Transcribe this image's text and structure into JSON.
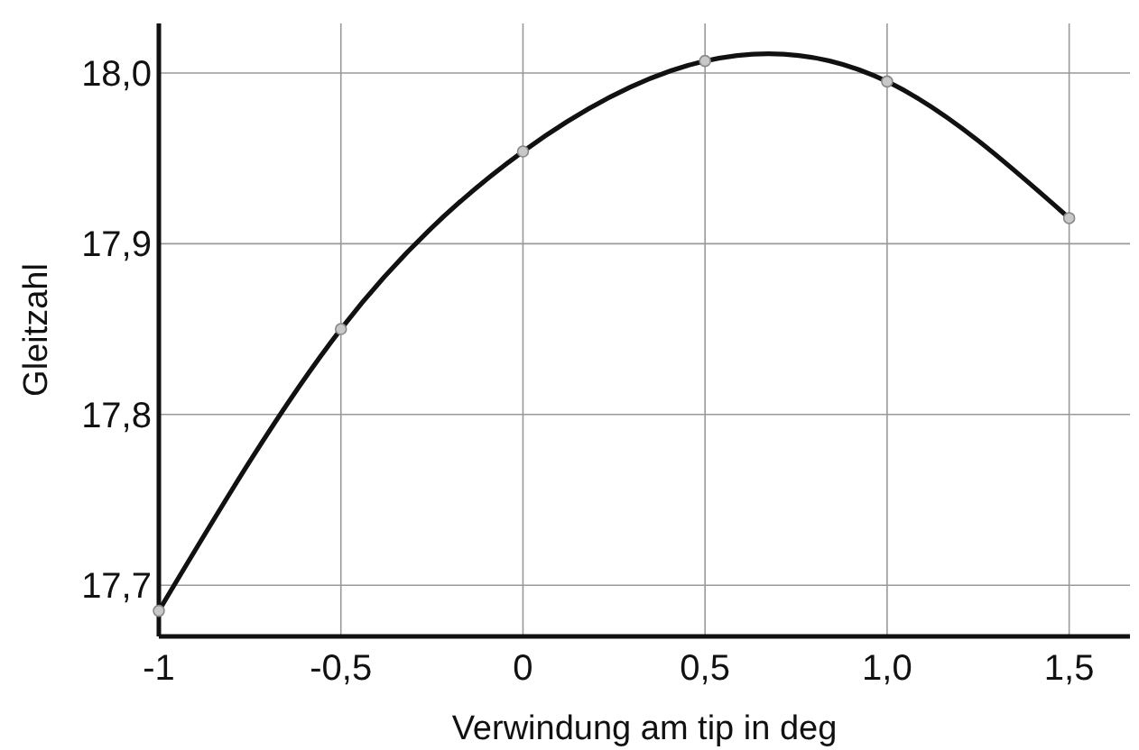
{
  "chart_data": {
    "type": "line",
    "xlabel": "Verwindung am tip in deg",
    "ylabel": "Gleitzahl",
    "x": [
      -1,
      -0.5,
      0,
      0.5,
      1,
      1.5
    ],
    "series": [
      {
        "color": "#111111",
        "values": [
          17.685,
          17.85,
          17.954,
          18.007,
          17.995,
          17.915
        ]
      }
    ],
    "xlim": [
      -1,
      1.667
    ],
    "ylim": [
      17.67,
      18.029
    ],
    "xticks": [
      {
        "value": -1,
        "label": "-1"
      },
      {
        "value": -0.5,
        "label": "-0,5"
      },
      {
        "value": 0,
        "label": "0"
      },
      {
        "value": 0.5,
        "label": "0,5"
      },
      {
        "value": 1,
        "label": "1,0"
      },
      {
        "value": 1.5,
        "label": "1,5"
      }
    ],
    "yticks": [
      {
        "value": 17.7,
        "label": "17,7"
      },
      {
        "value": 17.8,
        "label": "17,8"
      },
      {
        "value": 17.9,
        "label": "17,9"
      },
      {
        "value": 18,
        "label": "18,0"
      }
    ],
    "grid": true,
    "marker": "circle",
    "line_style": "solid"
  }
}
